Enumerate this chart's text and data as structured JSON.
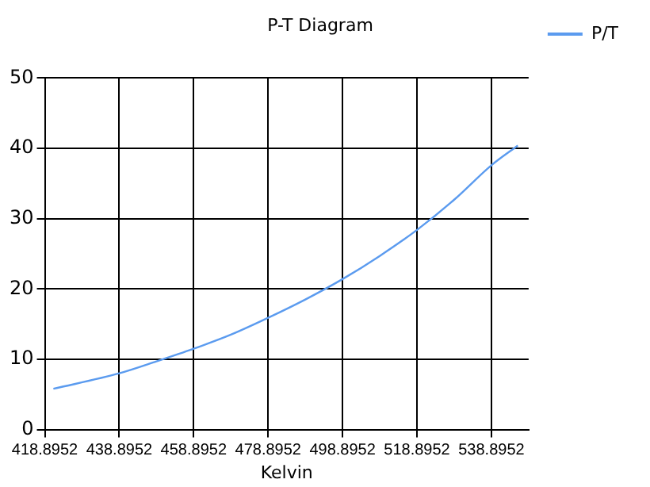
{
  "chart_data": {
    "type": "line",
    "title": "P-T Diagram",
    "xlabel": "Kelvin",
    "x": [
      421.2,
      438.9,
      448.9,
      458.9,
      468.9,
      478.9,
      488.9,
      498.9,
      508.9,
      518.9,
      528.9,
      538.9,
      546.0
    ],
    "series": [
      {
        "name": "P/T",
        "color": "#5b9bef",
        "values": [
          5.8,
          8.0,
          9.7,
          11.5,
          13.5,
          15.9,
          18.5,
          21.4,
          24.7,
          28.4,
          32.7,
          37.6,
          40.4
        ]
      }
    ],
    "xlim": [
      418.8952,
      548.8952
    ],
    "xticks": [
      418.8952,
      438.8952,
      458.8952,
      478.8952,
      498.8952,
      518.8952,
      538.8952
    ],
    "ylim": [
      0,
      50
    ],
    "yticks": [
      0,
      10,
      20,
      30,
      40,
      50
    ],
    "grid": true,
    "legend": "top right",
    "marker": "none",
    "line_style": "solid"
  }
}
